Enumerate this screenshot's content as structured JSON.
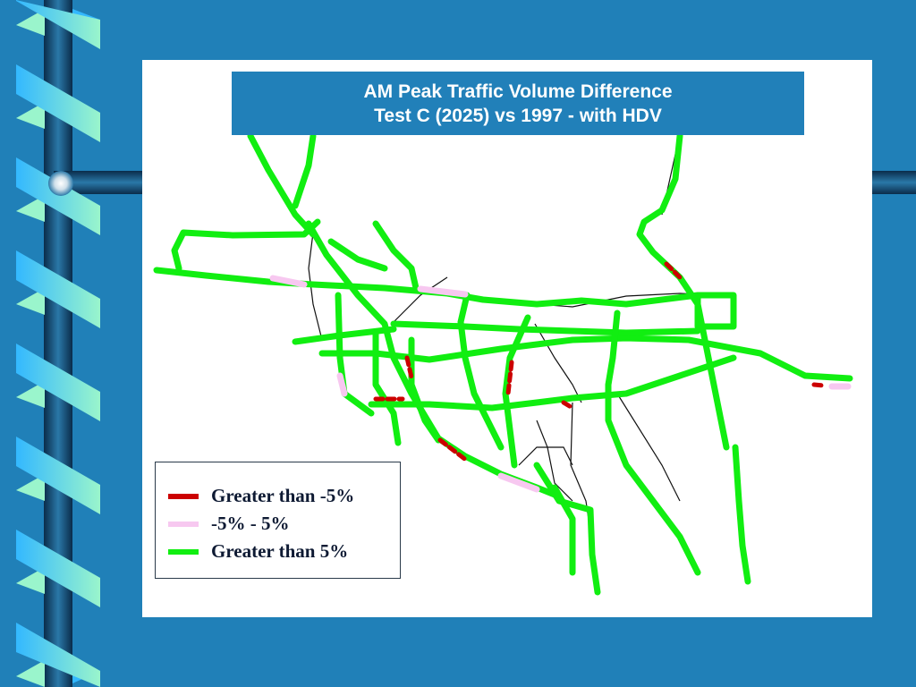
{
  "title": {
    "line1": "AM Peak Traffic Volume Difference",
    "line2": "Test C (2025) vs 1997 - with HDV"
  },
  "legend": {
    "items": [
      {
        "label": "Greater than -5%",
        "color": "#cc0000"
      },
      {
        "label": "-5% - 5%",
        "color": "#f7c8f0"
      },
      {
        "label": "Greater than 5%",
        "color": "#11ee11"
      }
    ]
  },
  "colors": {
    "background": "#2080b8",
    "road_increase": "#11ee11",
    "road_decrease": "#cc0000",
    "road_neutral": "#f7c8f0",
    "base_network": "#111111"
  }
}
